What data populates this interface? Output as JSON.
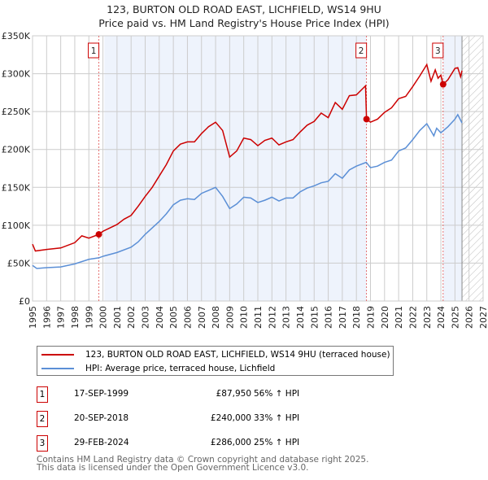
{
  "title": "123, BURTON OLD ROAD EAST, LICHFIELD, WS14 9HU",
  "subtitle": "Price paid vs. HM Land Registry's House Price Index (HPI)",
  "colors": {
    "property": "#cc0000",
    "hpi": "#5b8fd6",
    "shade": "#eef3fc"
  },
  "chart_data": {
    "type": "line",
    "xlim": [
      1995,
      2027
    ],
    "ylim": [
      0,
      350000
    ],
    "yticks": [
      {
        "v": 0,
        "label": "£0"
      },
      {
        "v": 50000,
        "label": "£50K"
      },
      {
        "v": 100000,
        "label": "£100K"
      },
      {
        "v": 150000,
        "label": "£150K"
      },
      {
        "v": 200000,
        "label": "£200K"
      },
      {
        "v": 250000,
        "label": "£250K"
      },
      {
        "v": 300000,
        "label": "£300K"
      },
      {
        "v": 350000,
        "label": "£350K"
      }
    ],
    "xticks": [
      "1995",
      "1996",
      "1997",
      "1998",
      "1999",
      "2000",
      "2001",
      "2002",
      "2003",
      "2004",
      "2005",
      "2006",
      "2007",
      "2008",
      "2009",
      "2010",
      "2011",
      "2012",
      "2013",
      "2014",
      "2015",
      "2016",
      "2017",
      "2018",
      "2019",
      "2020",
      "2021",
      "2022",
      "2023",
      "2024",
      "2025",
      "2026",
      "2027"
    ],
    "shaded": [
      [
        2000.1,
        2018.72
      ],
      [
        2024.16,
        2025.5
      ]
    ],
    "forecast_hatch": [
      2025.5,
      2027
    ],
    "series": [
      {
        "name": "123, BURTON OLD ROAD EAST, LICHFIELD, WS14 9HU (terraced house)",
        "color": "#cc0000",
        "points": [
          [
            1995,
            75
          ],
          [
            1995.2,
            66
          ],
          [
            1996,
            68
          ],
          [
            1997,
            70
          ],
          [
            1998,
            77
          ],
          [
            1998.5,
            86
          ],
          [
            1999,
            83
          ],
          [
            1999.71,
            88
          ],
          [
            2000,
            92
          ],
          [
            2001,
            101
          ],
          [
            2001.5,
            108
          ],
          [
            2002,
            113
          ],
          [
            2002.5,
            125
          ],
          [
            2003,
            138
          ],
          [
            2003.5,
            150
          ],
          [
            2004,
            165
          ],
          [
            2004.5,
            180
          ],
          [
            2005,
            198
          ],
          [
            2005.5,
            207
          ],
          [
            2006,
            210
          ],
          [
            2006.5,
            210
          ],
          [
            2007,
            221
          ],
          [
            2007.5,
            230
          ],
          [
            2008,
            236
          ],
          [
            2008.5,
            225
          ],
          [
            2009,
            190
          ],
          [
            2009.5,
            198
          ],
          [
            2010,
            215
          ],
          [
            2010.5,
            213
          ],
          [
            2011,
            205
          ],
          [
            2011.5,
            212
          ],
          [
            2012,
            215
          ],
          [
            2012.5,
            206
          ],
          [
            2013,
            210
          ],
          [
            2013.5,
            213
          ],
          [
            2014,
            223
          ],
          [
            2014.5,
            232
          ],
          [
            2015,
            237
          ],
          [
            2015.5,
            248
          ],
          [
            2016,
            242
          ],
          [
            2016.5,
            262
          ],
          [
            2017,
            253
          ],
          [
            2017.5,
            271
          ],
          [
            2018,
            272
          ],
          [
            2018.65,
            284
          ],
          [
            2018.72,
            240
          ],
          [
            2019,
            236
          ],
          [
            2019.5,
            240
          ],
          [
            2020,
            249
          ],
          [
            2020.5,
            255
          ],
          [
            2021,
            267
          ],
          [
            2021.5,
            270
          ],
          [
            2022,
            283
          ],
          [
            2022.5,
            297
          ],
          [
            2023,
            312
          ],
          [
            2023.3,
            290
          ],
          [
            2023.6,
            305
          ],
          [
            2023.8,
            294
          ],
          [
            2024,
            298
          ],
          [
            2024.16,
            286
          ],
          [
            2024.5,
            292
          ],
          [
            2025,
            307
          ],
          [
            2025.2,
            308
          ],
          [
            2025.4,
            296
          ],
          [
            2025.5,
            304
          ]
        ]
      },
      {
        "name": "HPI: Average price, terraced house, Lichfield",
        "color": "#5b8fd6",
        "points": [
          [
            1995,
            47
          ],
          [
            1995.3,
            43
          ],
          [
            1996,
            44
          ],
          [
            1997,
            45
          ],
          [
            1998,
            49
          ],
          [
            1999,
            55
          ],
          [
            1999.71,
            57
          ],
          [
            2000,
            59
          ],
          [
            2001,
            64
          ],
          [
            2002,
            71
          ],
          [
            2002.5,
            78
          ],
          [
            2003,
            88
          ],
          [
            2004,
            105
          ],
          [
            2004.5,
            115
          ],
          [
            2005,
            127
          ],
          [
            2005.5,
            133
          ],
          [
            2006,
            135
          ],
          [
            2006.5,
            134
          ],
          [
            2007,
            142
          ],
          [
            2007.5,
            146
          ],
          [
            2008,
            150
          ],
          [
            2008.5,
            138
          ],
          [
            2009,
            122
          ],
          [
            2009.5,
            128
          ],
          [
            2010,
            137
          ],
          [
            2010.5,
            136
          ],
          [
            2011,
            130
          ],
          [
            2011.5,
            133
          ],
          [
            2012,
            137
          ],
          [
            2012.5,
            132
          ],
          [
            2013,
            136
          ],
          [
            2013.5,
            136
          ],
          [
            2014,
            144
          ],
          [
            2014.5,
            149
          ],
          [
            2015,
            152
          ],
          [
            2015.5,
            156
          ],
          [
            2016,
            158
          ],
          [
            2016.5,
            168
          ],
          [
            2017,
            162
          ],
          [
            2017.5,
            173
          ],
          [
            2018,
            178
          ],
          [
            2018.7,
            183
          ],
          [
            2019,
            176
          ],
          [
            2019.5,
            178
          ],
          [
            2020,
            183
          ],
          [
            2020.5,
            186
          ],
          [
            2021,
            198
          ],
          [
            2021.5,
            202
          ],
          [
            2022,
            213
          ],
          [
            2022.5,
            225
          ],
          [
            2023,
            234
          ],
          [
            2023.5,
            218
          ],
          [
            2023.7,
            228
          ],
          [
            2024,
            222
          ],
          [
            2024.5,
            230
          ],
          [
            2025,
            240
          ],
          [
            2025.2,
            246
          ],
          [
            2025.5,
            235
          ]
        ]
      }
    ],
    "sales": [
      {
        "n": "1",
        "x": 1999.71,
        "y": 87950
      },
      {
        "n": "2",
        "x": 2018.72,
        "y": 240000
      },
      {
        "n": "3",
        "x": 2024.16,
        "y": 286000
      }
    ]
  },
  "legend": {
    "property": "123, BURTON OLD ROAD EAST, LICHFIELD, WS14 9HU (terraced house)",
    "hpi": "HPI: Average price, terraced house, Lichfield"
  },
  "transactions": [
    {
      "n": "1",
      "date": "17-SEP-1999",
      "price": "£87,950",
      "delta": "56% ↑ HPI"
    },
    {
      "n": "2",
      "date": "20-SEP-2018",
      "price": "£240,000",
      "delta": "33% ↑ HPI"
    },
    {
      "n": "3",
      "date": "29-FEB-2024",
      "price": "£286,000",
      "delta": "25% ↑ HPI"
    }
  ],
  "footer": [
    "Contains HM Land Registry data © Crown copyright and database right 2025.",
    "This data is licensed under the Open Government Licence v3.0."
  ]
}
